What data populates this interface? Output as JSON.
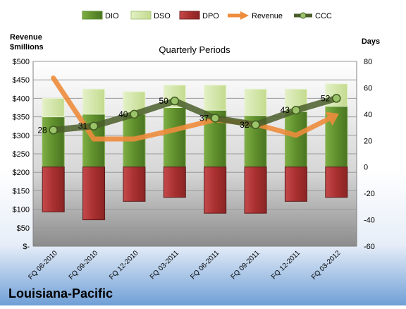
{
  "chart_data": {
    "type": "bar",
    "title": "Quarterly Periods",
    "company": "Louisiana-Pacific",
    "left_axis_label": [
      "Revenue",
      "$millions"
    ],
    "right_axis_label": "Days",
    "categories": [
      "FQ 06-2010",
      "FQ 09-2010",
      "FQ 12-2010",
      "FQ 03-2011",
      "FQ 06-2011",
      "FQ 09-2011",
      "FQ 12-2011",
      "FQ 03-2012"
    ],
    "left_axis": {
      "min": 0,
      "max": 500,
      "step": 50,
      "tick_labels": [
        "$-",
        "$50",
        "$100",
        "$150",
        "$200",
        "$250",
        "$300",
        "$350",
        "$400",
        "$450",
        "$500"
      ]
    },
    "right_axis": {
      "min": -60,
      "max": 80,
      "step": 20,
      "tick_labels": [
        "-60",
        "-40",
        "-20",
        "0",
        "20",
        "40",
        "60",
        "80"
      ]
    },
    "legend_position": "top",
    "series": [
      {
        "name": "DIO",
        "kind": "stacked-bar",
        "axis": "right",
        "values": [
          38,
          40,
          40,
          45,
          43,
          39,
          42,
          46
        ],
        "color": "#6c9a35"
      },
      {
        "name": "DSO",
        "kind": "stacked-bar",
        "axis": "right",
        "values": [
          14,
          19,
          17,
          17,
          19,
          20,
          17,
          17
        ],
        "color": "#d4e6a8"
      },
      {
        "name": "DPO",
        "kind": "negative-bar",
        "axis": "right",
        "values": [
          -34,
          -40,
          -26,
          -23,
          -35,
          -35,
          -26,
          -23
        ],
        "color": "#b0383b"
      },
      {
        "name": "Revenue",
        "kind": "arrow-line",
        "axis": "left",
        "values": [
          455,
          290,
          290,
          315,
          342,
          330,
          300,
          355
        ],
        "color": "#ed8c3c"
      },
      {
        "name": "CCC",
        "kind": "line-markers",
        "axis": "right",
        "values": [
          28,
          31,
          40,
          50,
          37,
          32,
          43,
          52
        ],
        "labels": [
          "28",
          "31",
          "40",
          "50",
          "37",
          "32",
          "43",
          "52"
        ],
        "color": "#556b2f"
      }
    ]
  }
}
